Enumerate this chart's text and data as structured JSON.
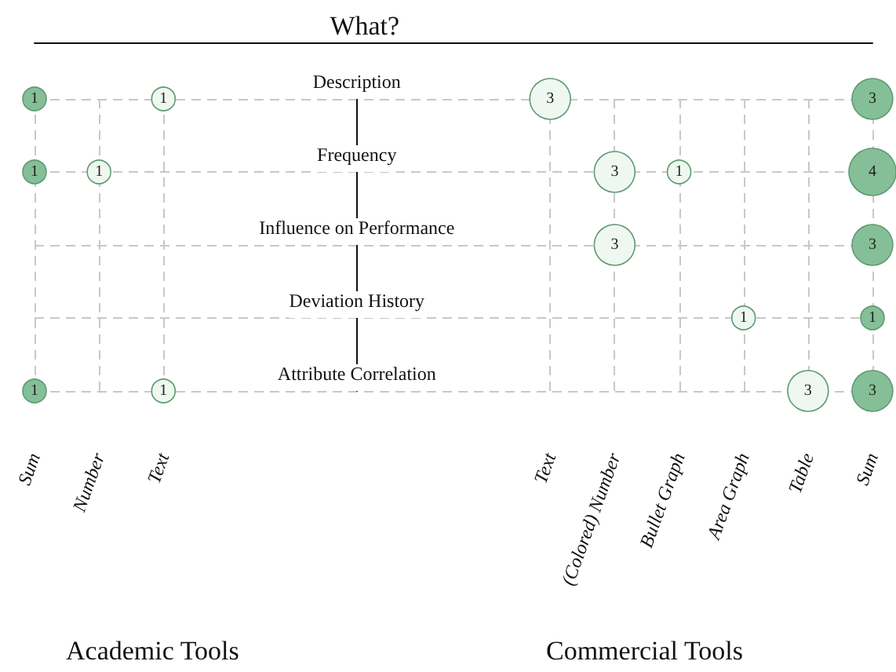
{
  "chart_data": {
    "type": "heatmap",
    "title": "What?",
    "categories": [
      "Sum",
      "Number",
      "Text",
      null,
      null,
      null,
      null,
      null,
      "Text",
      "(Colored) Number",
      "Bullet Graph",
      "Area Graph",
      "Table",
      "Sum"
    ],
    "y_categories": [
      "Description",
      "Frequency",
      "Influence on Performance",
      "Deviation History",
      "Attribute Correlation"
    ],
    "cells": [
      [
        1,
        null,
        1,
        null,
        null,
        null,
        null,
        null,
        3,
        null,
        null,
        null,
        null,
        3
      ],
      [
        1,
        1,
        null,
        null,
        null,
        null,
        null,
        null,
        null,
        3,
        1,
        null,
        null,
        4
      ],
      [
        null,
        null,
        null,
        null,
        null,
        null,
        null,
        null,
        null,
        3,
        null,
        null,
        null,
        3
      ],
      [
        null,
        null,
        null,
        null,
        null,
        null,
        null,
        null,
        null,
        null,
        null,
        1,
        null,
        1
      ],
      [
        1,
        null,
        1,
        null,
        null,
        null,
        null,
        null,
        null,
        null,
        null,
        null,
        3,
        3
      ]
    ],
    "colors": [
      "#85bf98",
      "#eef8f1",
      "#eef8f1",
      null,
      null,
      null,
      null,
      null,
      "#eef8f1",
      "#eef8f1",
      "#eef8f1",
      "#eef8f1",
      "#eef8f1",
      "#85bf98"
    ],
    "grid": true,
    "data_labels": true,
    "annotations": [
      "Academic Tools",
      "Commercial Tools"
    ]
  }
}
